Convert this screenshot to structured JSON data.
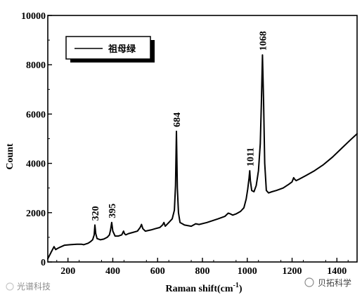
{
  "chart_data": {
    "type": "line",
    "title": "",
    "xlabel": "Raman shift(cm",
    "xlabel_sup": "-1",
    "xlabel_close": ")",
    "ylabel": "Count",
    "xlim": [
      110,
      1490
    ],
    "ylim": [
      0,
      10000
    ],
    "x_ticks": [
      200,
      400,
      600,
      800,
      1000,
      1200,
      1400
    ],
    "y_ticks": [
      0,
      2000,
      4000,
      6000,
      8000,
      10000
    ],
    "grid": false,
    "legend": {
      "position": "top-left",
      "entries": [
        "祖母绿"
      ]
    },
    "series": [
      {
        "name": "祖母绿",
        "x": [
          110,
          125,
          138,
          145,
          152,
          165,
          185,
          210,
          240,
          260,
          270,
          290,
          300,
          310,
          317,
          320,
          324,
          330,
          345,
          360,
          375,
          385,
          390,
          395,
          400,
          410,
          425,
          440,
          448,
          452,
          458,
          470,
          490,
          510,
          522,
          528,
          534,
          545,
          570,
          590,
          610,
          622,
          628,
          634,
          650,
          665,
          675,
          680,
          684,
          688,
          693,
          700,
          720,
          750,
          770,
          785,
          820,
          870,
          900,
          915,
          925,
          935,
          950,
          970,
          985,
          995,
          1002,
          1008,
          1011,
          1014,
          1020,
          1030,
          1040,
          1050,
          1058,
          1063,
          1068,
          1073,
          1078,
          1085,
          1095,
          1110,
          1130,
          1160,
          1185,
          1200,
          1207,
          1212,
          1218,
          1230,
          1260,
          1300,
          1340,
          1380,
          1420,
          1460,
          1490
        ],
        "y": [
          130,
          400,
          620,
          500,
          540,
          600,
          680,
          700,
          720,
          720,
          700,
          760,
          820,
          900,
          1100,
          1500,
          1150,
          950,
          900,
          930,
          1000,
          1100,
          1300,
          1600,
          1250,
          1050,
          1050,
          1100,
          1250,
          1150,
          1100,
          1150,
          1200,
          1250,
          1400,
          1520,
          1350,
          1250,
          1300,
          1350,
          1400,
          1500,
          1600,
          1450,
          1600,
          1750,
          2100,
          3100,
          5300,
          3000,
          2000,
          1600,
          1500,
          1450,
          1550,
          1520,
          1600,
          1750,
          1850,
          1980,
          1950,
          1900,
          1950,
          2050,
          2200,
          2550,
          2950,
          3400,
          3700,
          3300,
          2900,
          2850,
          3100,
          3700,
          4800,
          6500,
          8400,
          6500,
          4000,
          2900,
          2800,
          2850,
          2900,
          3000,
          3150,
          3250,
          3420,
          3350,
          3300,
          3350,
          3500,
          3700,
          3950,
          4250,
          4600,
          4950,
          5200
        ]
      }
    ],
    "annotations": [
      {
        "text": "320",
        "x": 320,
        "y": 1500
      },
      {
        "text": "395",
        "x": 395,
        "y": 1600
      },
      {
        "text": "684",
        "x": 684,
        "y": 5300
      },
      {
        "text": "1011",
        "x": 1011,
        "y": 3700
      },
      {
        "text": "1068",
        "x": 1068,
        "y": 8400
      }
    ]
  },
  "watermarks": {
    "left": "光谱科技",
    "right": "贝拓科学"
  },
  "colors": {
    "line": "#000000",
    "background": "#ffffff",
    "legend_shadow": "#000000"
  }
}
